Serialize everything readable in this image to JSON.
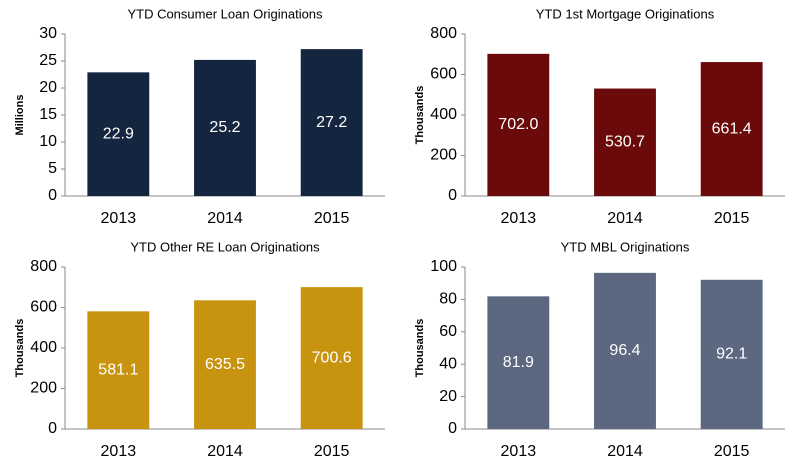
{
  "chart_data": [
    {
      "type": "bar",
      "title": "YTD Consumer Loan Originations",
      "y_label": "Millions",
      "categories": [
        "2013",
        "2014",
        "2015"
      ],
      "values": [
        22.9,
        25.2,
        27.2
      ],
      "value_labels": [
        "22.9",
        "25.2",
        "27.2"
      ],
      "color": "#14253f",
      "ylim": [
        0,
        30
      ],
      "yticks": [
        0,
        5,
        10,
        15,
        20,
        25,
        30
      ]
    },
    {
      "type": "bar",
      "title": "YTD 1st Mortgage Originations",
      "y_label": "Thousands",
      "categories": [
        "2013",
        "2014",
        "2015"
      ],
      "values": [
        702.0,
        530.7,
        661.4
      ],
      "value_labels": [
        "702.0",
        "530.7",
        "661.4"
      ],
      "color": "#6b0a0a",
      "ylim": [
        0,
        800
      ],
      "yticks": [
        0,
        200,
        400,
        600,
        800
      ]
    },
    {
      "type": "bar",
      "title": "YTD Other RE Loan Originations",
      "y_label": "Thousands",
      "categories": [
        "2013",
        "2014",
        "2015"
      ],
      "values": [
        581.1,
        635.5,
        700.6
      ],
      "value_labels": [
        "581.1",
        "635.5",
        "700.6"
      ],
      "color": "#c8930e",
      "ylim": [
        0,
        800
      ],
      "yticks": [
        0,
        200,
        400,
        600,
        800
      ]
    },
    {
      "type": "bar",
      "title": "YTD MBL Originations",
      "y_label": "Thousands",
      "categories": [
        "2013",
        "2014",
        "2015"
      ],
      "values": [
        81.9,
        96.4,
        92.1
      ],
      "value_labels": [
        "81.9",
        "96.4",
        "92.1"
      ],
      "color": "#5b6880",
      "ylim": [
        0,
        100
      ],
      "yticks": [
        0,
        20,
        40,
        60,
        80,
        100
      ]
    }
  ]
}
